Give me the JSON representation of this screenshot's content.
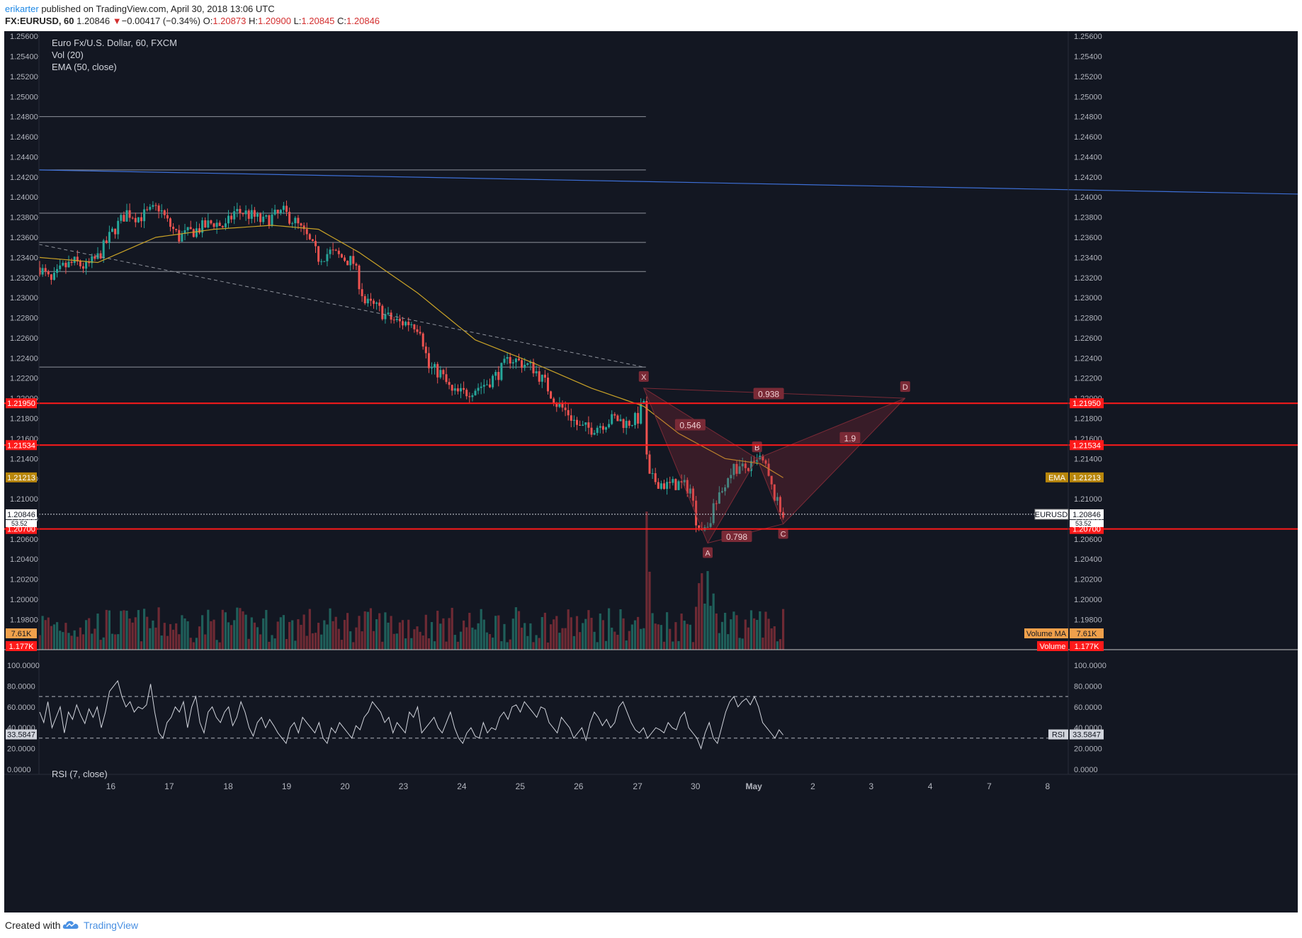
{
  "header": {
    "author": "erikarter",
    "published_text": "published on TradingView.com, April 30, 2018 13:06 UTC",
    "symbol": "FX:EURUSD, 60",
    "last": "1.20846",
    "change_arrow": "▼",
    "change": "−0.00417 (−0.34%)",
    "o_label": "O:",
    "o_value": "1.20873",
    "h_label": "H:",
    "h_value": "1.20900",
    "l_label": "L:",
    "l_value": "1.20845",
    "c_label": "C:",
    "c_value": "1.20846"
  },
  "legend": {
    "title": "Euro Fx/U.S. Dollar, 60, FXCM",
    "vol": "Vol (20)",
    "ema": "EMA (50, close)"
  },
  "footer": {
    "created_with": "Created with",
    "brand": "TradingView",
    "logo_icon": "tradingview-cloud-icon"
  },
  "colors": {
    "background": "#131722",
    "up": "#26a69a",
    "down": "#ef5350",
    "ema": "#c9a227",
    "trendline": "#3d6fd6",
    "level": "#ff1a1a",
    "pattern": "#9a2a3a"
  },
  "chart_data": [
    {
      "type": "candlestick",
      "title": "Euro Fx/U.S. Dollar, 60, FXCM",
      "ylim": [
        1.195,
        1.2565
      ],
      "y_ticks": [
        "1.25600",
        "1.25400",
        "1.25200",
        "1.25000",
        "1.24800",
        "1.24600",
        "1.24400",
        "1.24200",
        "1.24000",
        "1.23800",
        "1.23600",
        "1.23400",
        "1.23200",
        "1.23000",
        "1.22800",
        "1.22600",
        "1.22400",
        "1.22200",
        "1.22000",
        "1.21800",
        "1.21600",
        "1.21400",
        "1.21200",
        "1.21000",
        "1.20800",
        "1.20600",
        "1.20400",
        "1.20200",
        "1.20000",
        "1.19800"
      ],
      "x_ticks": [
        "16",
        "17",
        "18",
        "19",
        "20",
        "23",
        "24",
        "25",
        "26",
        "27",
        "30",
        "May",
        "2",
        "3",
        "4",
        "7",
        "8"
      ],
      "price_path": [
        [
          0,
          1.233
        ],
        [
          4,
          1.2315
        ],
        [
          8,
          1.233
        ],
        [
          12,
          1.2335
        ],
        [
          16,
          1.233
        ],
        [
          20,
          1.234
        ],
        [
          25,
          1.2365
        ],
        [
          30,
          1.2385
        ],
        [
          34,
          1.238
        ],
        [
          38,
          1.2385
        ],
        [
          41,
          1.239
        ],
        [
          44,
          1.2375
        ],
        [
          48,
          1.236
        ],
        [
          52,
          1.2365
        ],
        [
          56,
          1.237
        ],
        [
          60,
          1.2375
        ],
        [
          64,
          1.237
        ],
        [
          67,
          1.2385
        ],
        [
          70,
          1.2385
        ],
        [
          74,
          1.238
        ],
        [
          77,
          1.2375
        ],
        [
          80,
          1.238
        ],
        [
          84,
          1.2385
        ],
        [
          88,
          1.2375
        ],
        [
          92,
          1.236
        ],
        [
          96,
          1.234
        ],
        [
          100,
          1.2345
        ],
        [
          104,
          1.234
        ],
        [
          108,
          1.2335
        ],
        [
          112,
          1.2295
        ],
        [
          116,
          1.229
        ],
        [
          120,
          1.228
        ],
        [
          124,
          1.2275
        ],
        [
          128,
          1.2275
        ],
        [
          131,
          1.227
        ],
        [
          134,
          1.223
        ],
        [
          138,
          1.2225
        ],
        [
          142,
          1.2205
        ],
        [
          146,
          1.2205
        ],
        [
          150,
          1.221
        ],
        [
          154,
          1.2215
        ],
        [
          158,
          1.2225
        ],
        [
          162,
          1.224
        ],
        [
          166,
          1.2235
        ],
        [
          170,
          1.223
        ],
        [
          174,
          1.2215
        ],
        [
          178,
          1.2195
        ],
        [
          182,
          1.2185
        ],
        [
          186,
          1.217
        ],
        [
          190,
          1.217
        ],
        [
          194,
          1.2175
        ],
        [
          198,
          1.218
        ],
        [
          202,
          1.2175
        ],
        [
          206,
          1.218
        ],
        [
          208,
          1.2198
        ],
        [
          209,
          1.214
        ],
        [
          210,
          1.212
        ],
        [
          212,
          1.2118
        ],
        [
          216,
          1.2113
        ],
        [
          220,
          1.2115
        ],
        [
          224,
          1.211
        ],
        [
          226,
          1.208
        ],
        [
          228,
          1.207
        ],
        [
          230,
          1.2075
        ],
        [
          232,
          1.209
        ],
        [
          234,
          1.21
        ],
        [
          236,
          1.2115
        ],
        [
          238,
          1.213
        ],
        [
          242,
          1.213
        ],
        [
          246,
          1.2132
        ],
        [
          248,
          1.214
        ],
        [
          250,
          1.213
        ],
        [
          252,
          1.211
        ],
        [
          254,
          1.2095
        ],
        [
          255,
          1.2088
        ],
        [
          256,
          1.2085
        ]
      ],
      "bars_total": 256,
      "ema_path": [
        [
          0,
          1.234
        ],
        [
          20,
          1.2335
        ],
        [
          40,
          1.236
        ],
        [
          60,
          1.2368
        ],
        [
          80,
          1.2372
        ],
        [
          96,
          1.2368
        ],
        [
          110,
          1.2345
        ],
        [
          130,
          1.2305
        ],
        [
          150,
          1.2258
        ],
        [
          170,
          1.2235
        ],
        [
          190,
          1.221
        ],
        [
          208,
          1.2192
        ],
        [
          220,
          1.2165
        ],
        [
          236,
          1.214
        ],
        [
          248,
          1.2135
        ],
        [
          256,
          1.2121
        ]
      ],
      "horizontal_lines_grey": [
        1.248,
        1.2427,
        1.2384,
        1.2355,
        1.2326,
        1.2231
      ],
      "levels": [
        {
          "price": 1.2195,
          "label": "1.21950"
        },
        {
          "price": 1.21534,
          "label": "1.21534"
        },
        {
          "price": 1.207,
          "label": "1.20700"
        }
      ],
      "ema_label": {
        "name": "EMA",
        "price": 1.21213,
        "label": "1.21213"
      },
      "last_price": {
        "name": "EURUSD",
        "price": 1.20846,
        "label": "1.20846"
      },
      "hidden_value_label": "53.52",
      "trendline_blue": [
        [
          0,
          1.2427
        ],
        [
          1480,
          1.2403
        ]
      ],
      "trendline_dashed": [
        [
          0,
          1.2353
        ],
        [
          208,
          1.2231
        ]
      ],
      "harmonic": {
        "points": [
          {
            "name": "X",
            "bar": 208,
            "price": 1.221
          },
          {
            "name": "A",
            "bar": 230,
            "price": 1.2056
          },
          {
            "name": "B",
            "bar": 247,
            "price": 1.214
          },
          {
            "name": "C",
            "bar": 256,
            "price": 1.2075
          },
          {
            "name": "D",
            "bar": 298,
            "price": 1.22
          }
        ],
        "ratios": [
          {
            "label": "0.546",
            "bar": 224,
            "price": 1.2173
          },
          {
            "label": "0.798",
            "bar": 240,
            "price": 1.2062
          },
          {
            "label": "1.9",
            "bar": 279,
            "price": 1.216
          },
          {
            "label": "0.938",
            "bar": 251,
            "price": 1.2204
          }
        ]
      }
    },
    {
      "type": "bar",
      "title": "Vol (20)",
      "volume_ma_label": "Volume MA",
      "volume_ma_value": "7.61K",
      "volume_label": "Volume",
      "volume_value": "1.177K"
    },
    {
      "type": "line",
      "title": "RSI (7, close)",
      "ylim": [
        0,
        100
      ],
      "y_ticks": [
        "100.0000",
        "80.0000",
        "60.0000",
        "40.0000",
        "20.0000",
        "0.0000"
      ],
      "bands": [
        70,
        30
      ],
      "current_name": "RSI",
      "current_value": "33.5847",
      "rsi_value": 33.5847,
      "values": [
        55,
        45,
        65,
        40,
        50,
        60,
        35,
        55,
        48,
        62,
        52,
        44,
        58,
        50,
        60,
        40,
        55,
        75,
        80,
        85,
        70,
        60,
        65,
        55,
        60,
        58,
        62,
        82,
        55,
        35,
        30,
        45,
        50,
        60,
        55,
        65,
        40,
        60,
        70,
        45,
        35,
        55,
        60,
        50,
        45,
        55,
        60,
        42,
        50,
        65,
        55,
        40,
        32,
        45,
        50,
        40,
        48,
        42,
        35,
        30,
        25,
        40,
        45,
        35,
        50,
        45,
        40,
        35,
        45,
        30,
        25,
        40,
        35,
        45,
        40,
        35,
        30,
        42,
        38,
        50,
        55,
        65,
        60,
        55,
        45,
        50,
        35,
        45,
        40,
        35,
        55,
        50,
        60,
        35,
        40,
        45,
        50,
        40,
        35,
        45,
        55,
        40,
        30,
        25,
        35,
        40,
        32,
        30,
        45,
        35,
        40,
        38,
        50,
        55,
        48,
        60,
        62,
        55,
        65,
        60,
        55,
        50,
        60,
        58,
        45,
        40,
        35,
        50,
        45,
        40,
        30,
        35,
        40,
        28,
        45,
        55,
        50,
        42,
        48,
        40,
        45,
        60,
        65,
        55,
        45,
        38,
        35,
        40,
        30,
        35,
        40,
        38,
        35,
        45,
        40,
        38,
        50,
        55,
        40,
        35,
        30,
        20,
        35,
        45,
        30,
        25,
        40,
        55,
        65,
        70,
        60,
        65,
        68,
        62,
        70,
        60,
        45,
        40,
        35,
        30,
        38,
        33
      ]
    }
  ]
}
